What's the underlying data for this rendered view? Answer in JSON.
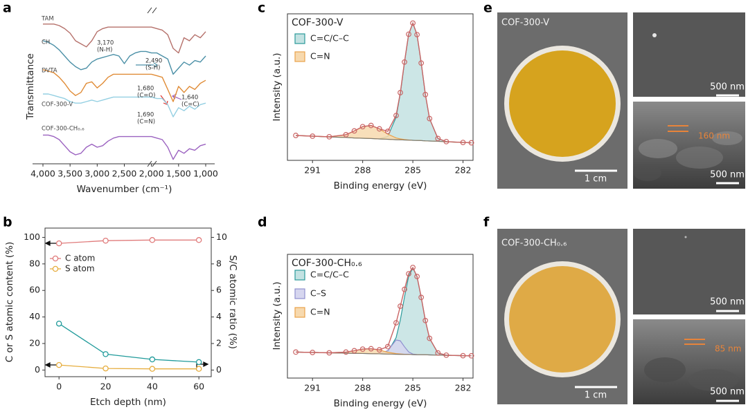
{
  "panel_labels": [
    "a",
    "b",
    "c",
    "d",
    "e",
    "f"
  ],
  "chart_data": [
    {
      "type": "line",
      "xlabel": "Wavenumber (cm⁻¹)",
      "ylabel": "Transmittance",
      "xlim": [
        4000,
        1000
      ],
      "xticks": [
        {
          "value": 4000,
          "label": "4,000"
        },
        {
          "value": 3500,
          "label": "3,500"
        },
        {
          "value": 3000,
          "label": "3,000"
        },
        {
          "value": 2500,
          "label": "2,500"
        },
        {
          "value": 2000,
          "label": "2,000"
        },
        {
          "value": 1500,
          "label": "1,500"
        },
        {
          "value": 1000,
          "label": "1,000"
        }
      ],
      "ylim": [
        0,
        100
      ],
      "x": [
        4000,
        3900,
        3800,
        3700,
        3600,
        3500,
        3400,
        3300,
        3200,
        3100,
        3000,
        2900,
        2800,
        2700,
        2600,
        2500,
        2400,
        2300,
        2200,
        2100,
        2000,
        1900,
        1800,
        1700,
        1600,
        1500,
        1400,
        1300,
        1200,
        1100,
        1000
      ],
      "series": [
        {
          "name": "TAM",
          "color": "#b5706a",
          "values": [
            91,
            91,
            91,
            90,
            88,
            85,
            80,
            78,
            76,
            80,
            86,
            88,
            89,
            89,
            89,
            89,
            89,
            89,
            89,
            89,
            89,
            88,
            87,
            84,
            75,
            72,
            82,
            80,
            84,
            82,
            86
          ]
        },
        {
          "name": "CH",
          "color": "#4a8fa6",
          "values": [
            80,
            79,
            77,
            74,
            70,
            66,
            63,
            61,
            62,
            66,
            68,
            69,
            70,
            71,
            70,
            65,
            70,
            72,
            73,
            73,
            72,
            72,
            70,
            68,
            58,
            62,
            66,
            64,
            67,
            66,
            70
          ]
        },
        {
          "name": "DVTA",
          "color": "#e08b35",
          "values": [
            61,
            60,
            59,
            56,
            52,
            47,
            44,
            46,
            52,
            53,
            49,
            52,
            56,
            58,
            58,
            58,
            58,
            58,
            58,
            58,
            58,
            57,
            56,
            48,
            40,
            50,
            46,
            50,
            48,
            52,
            54
          ]
        },
        {
          "name": "COF-300-V",
          "color": "#93cfe2",
          "values": [
            45,
            45,
            44,
            43,
            42,
            40,
            39,
            39,
            40,
            41,
            40,
            41,
            42,
            43,
            43,
            43,
            43,
            43,
            43,
            43,
            43,
            42,
            42,
            38,
            30,
            36,
            34,
            37,
            35,
            38,
            39
          ]
        },
        {
          "name": "COF-300-CH₀.₆",
          "color": "#9b62c0",
          "values": [
            18,
            18,
            17,
            15,
            11,
            7,
            5,
            6,
            10,
            12,
            10,
            11,
            14,
            16,
            17,
            17,
            17,
            17,
            17,
            17,
            17,
            16,
            15,
            10,
            2,
            8,
            6,
            9,
            8,
            11,
            12
          ]
        }
      ],
      "annotations": [
        [
          "3,170",
          "(N-H)"
        ],
        [
          "2,490",
          "(S-H)"
        ],
        [
          "1,680",
          "(C=O)"
        ],
        [
          "1,640",
          "(C=C)"
        ],
        [
          "1,690",
          "(C=N)"
        ]
      ]
    },
    {
      "type": "line",
      "xlabel": "Etch depth (nm)",
      "ylabel": "C or S atomic content (%)",
      "y2label": "S/C atomic ratio (%)",
      "x": [
        0,
        20,
        40,
        60
      ],
      "xlim": [
        -6,
        65.3
      ],
      "xticks": [
        0,
        20,
        40,
        60
      ],
      "ylim": [
        -5,
        107
      ],
      "yticks": [
        0,
        20,
        40,
        60,
        80,
        100
      ],
      "y2lim": [
        -0.5,
        10.7
      ],
      "y2ticks": [
        0,
        2,
        4,
        6,
        8,
        10
      ],
      "series": [
        {
          "name": "C atom",
          "color": "#e07b7b",
          "marker": "circle",
          "values": [
            95.5,
            97.5,
            98,
            98
          ]
        },
        {
          "name": "S atom",
          "color": "#e6ad3e",
          "marker": "circle",
          "values": [
            3.8,
            1.2,
            0.9,
            0.9
          ]
        },
        {
          "color": "#1f9a9a",
          "marker": "circle",
          "axis": "y2",
          "values": [
            3.5,
            1.2,
            0.8,
            0.6
          ]
        }
      ]
    },
    {
      "type": "area",
      "title": "COF-300-V",
      "xlabel": "Binding energy (eV)",
      "ylabel": "Intensity (a.u.)",
      "xlim": [
        292.5,
        281.4
      ],
      "xticks": [
        291,
        288,
        285,
        282
      ],
      "ylim": [
        0,
        100
      ],
      "x": [
        292,
        291,
        290,
        289,
        288.5,
        288,
        287.5,
        287,
        286.5,
        286,
        285.75,
        285.5,
        285.25,
        285,
        284.75,
        284.5,
        284.25,
        284,
        283.5,
        283,
        282,
        281.5
      ],
      "series": [
        {
          "color": "#c96464",
          "marker": "circle",
          "values": [
            17,
            16.5,
            16.1,
            17.5,
            20.1,
            23,
            23.8,
            21.5,
            19.8,
            30.6,
            46.2,
            67.1,
            86.1,
            93.7,
            85.8,
            66.4,
            44.9,
            28.5,
            14.9,
            12.8,
            12.2,
            12
          ]
        }
      ],
      "background": {
        "color": "#777777",
        "values": [
          17,
          16.5,
          16,
          15.6,
          15.3,
          15.1,
          14.9,
          14.6,
          14.4,
          14.1,
          14,
          13.9,
          13.8,
          13.7,
          13.6,
          13.5,
          13.3,
          13.2,
          13,
          12.7,
          12.2,
          12
        ]
      },
      "components": [
        {
          "name": "C=C/C–C",
          "color": "#2a9a9a",
          "fill": "#c3e2e2",
          "values": [
            0,
            0,
            0,
            0,
            0,
            0,
            0,
            0.1,
            1.9,
            15.3,
            31.6,
            52.9,
            72.2,
            80,
            72.2,
            52.9,
            31.6,
            15.3,
            1.9,
            0.1,
            0,
            0
          ]
        },
        {
          "name": "C=N",
          "color": "#eaa24a",
          "fill": "#f7d9ae",
          "values": [
            0,
            0,
            0.1,
            1.9,
            4.8,
            7.9,
            8.9,
            6.8,
            3.5,
            1.2,
            0.6,
            0.3,
            0.1,
            0,
            0,
            0,
            0,
            0,
            0,
            0,
            0,
            0
          ]
        }
      ]
    },
    {
      "type": "area",
      "title": "COF-300-CH₀.₆",
      "xlabel": "Binding energy (eV)",
      "ylabel": "Intensity (a.u.)",
      "xlim": [
        292.5,
        281.4
      ],
      "xticks": [
        291,
        288,
        285,
        282
      ],
      "ylim": [
        0,
        100
      ],
      "x": [
        292,
        291,
        290,
        289,
        288.5,
        288,
        287.5,
        287,
        286.5,
        286,
        285.75,
        285.5,
        285.25,
        285,
        284.75,
        284.5,
        284.25,
        284,
        283.5,
        283,
        282,
        281.5
      ],
      "series": [
        {
          "color": "#c96464",
          "marker": "circle",
          "values": [
            21,
            20.7,
            20.4,
            21,
            22.1,
            23.4,
            23.7,
            22.8,
            25.4,
            44.7,
            58.1,
            71.7,
            84.3,
            89.4,
            82.1,
            65.2,
            46.5,
            32.1,
            20.3,
            18.5,
            18.1,
            18
          ]
        }
      ],
      "background": {
        "color": "#777777",
        "values": [
          21,
          20.7,
          20.4,
          20.1,
          20,
          19.9,
          19.7,
          19.6,
          19.4,
          19.3,
          19.2,
          19.1,
          19.1,
          19,
          18.9,
          18.9,
          18.8,
          18.7,
          18.6,
          18.4,
          18.1,
          18
        ]
      },
      "components": [
        {
          "name": "C=C/C–C",
          "color": "#2a9a9a",
          "fill": "#c3e2e2",
          "values": [
            0,
            0,
            0,
            0,
            0,
            0,
            0,
            0.1,
            1.7,
            13.4,
            27.7,
            46.3,
            63.1,
            70,
            63.1,
            46.3,
            27.7,
            13.4,
            1.7,
            0.1,
            0,
            0
          ]
        },
        {
          "name": "C–S",
          "color": "#8f8fcf",
          "fill": "#d6d6ef",
          "values": [
            0,
            0,
            0,
            0,
            0,
            0,
            0,
            0.1,
            2.8,
            11.5,
            10.9,
            6.2,
            2.1,
            0.4,
            0.1,
            0,
            0,
            0,
            0,
            0,
            0,
            0
          ]
        },
        {
          "name": "C=N",
          "color": "#eaa24a",
          "fill": "#f7d9ae",
          "values": [
            0,
            0,
            0,
            0.9,
            2.1,
            3.5,
            4,
            3,
            1.5,
            0.5,
            0.3,
            0.1,
            0,
            0,
            0,
            0,
            0,
            0,
            0,
            0,
            0,
            0
          ]
        }
      ]
    }
  ],
  "images": [
    {
      "title": "COF-300-V",
      "photo_scale": "1 cm",
      "sem_top_scale": "500 nm",
      "sem_bottom_scale": "500 nm",
      "thickness": "160 nm"
    },
    {
      "title": "COF-300-CH₀.₆",
      "photo_scale": "1 cm",
      "sem_top_scale": "500 nm",
      "sem_bottom_scale": "500 nm",
      "thickness": "85 nm"
    }
  ]
}
